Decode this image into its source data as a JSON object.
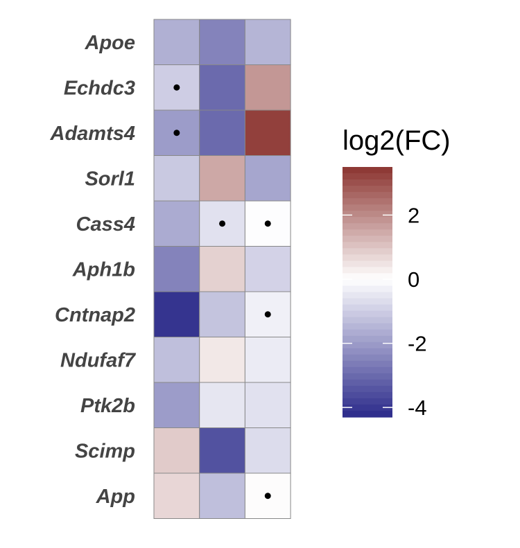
{
  "chart_data": {
    "type": "heatmap",
    "rows": [
      "Apoe",
      "Echdc3",
      "Adamts4",
      "Sorl1",
      "Cass4",
      "Aph1b",
      "Cntnap2",
      "Ndufaf7",
      "Ptk2b",
      "Scimp",
      "App"
    ],
    "columns": 3,
    "values": [
      [
        -1.6,
        -2.5,
        -1.5
      ],
      [
        -1.0,
        -3.0,
        1.8
      ],
      [
        -2.0,
        -3.0,
        3.3
      ],
      [
        -1.1,
        1.5,
        -1.8
      ],
      [
        -1.7,
        -0.6,
        -0.05
      ],
      [
        -2.5,
        0.8,
        -0.9
      ],
      [
        -4.1,
        -1.2,
        -0.3
      ],
      [
        -1.3,
        0.4,
        -0.4
      ],
      [
        -2.0,
        -0.5,
        -0.6
      ],
      [
        0.9,
        -3.5,
        -0.7
      ],
      [
        0.7,
        -1.3,
        0.05
      ]
    ],
    "significance_dots": [
      [
        false,
        false,
        false
      ],
      [
        true,
        false,
        false
      ],
      [
        true,
        false,
        false
      ],
      [
        false,
        false,
        false
      ],
      [
        false,
        true,
        true
      ],
      [
        false,
        false,
        false
      ],
      [
        false,
        false,
        true
      ],
      [
        false,
        false,
        false
      ],
      [
        false,
        false,
        false
      ],
      [
        false,
        false,
        false
      ],
      [
        false,
        false,
        true
      ]
    ],
    "legend": {
      "title": "log2(FC)",
      "ticks": [
        2,
        0,
        -2,
        -4
      ],
      "tick_labels": [
        "2",
        "0",
        "-2",
        "-4"
      ],
      "range": [
        -4.3,
        3.5
      ],
      "position": "right"
    },
    "colors": {
      "low": "#2b2a8a",
      "mid": "#ffffff",
      "high": "#8b3430",
      "cell_border": "#888888",
      "label": "#444444"
    }
  }
}
